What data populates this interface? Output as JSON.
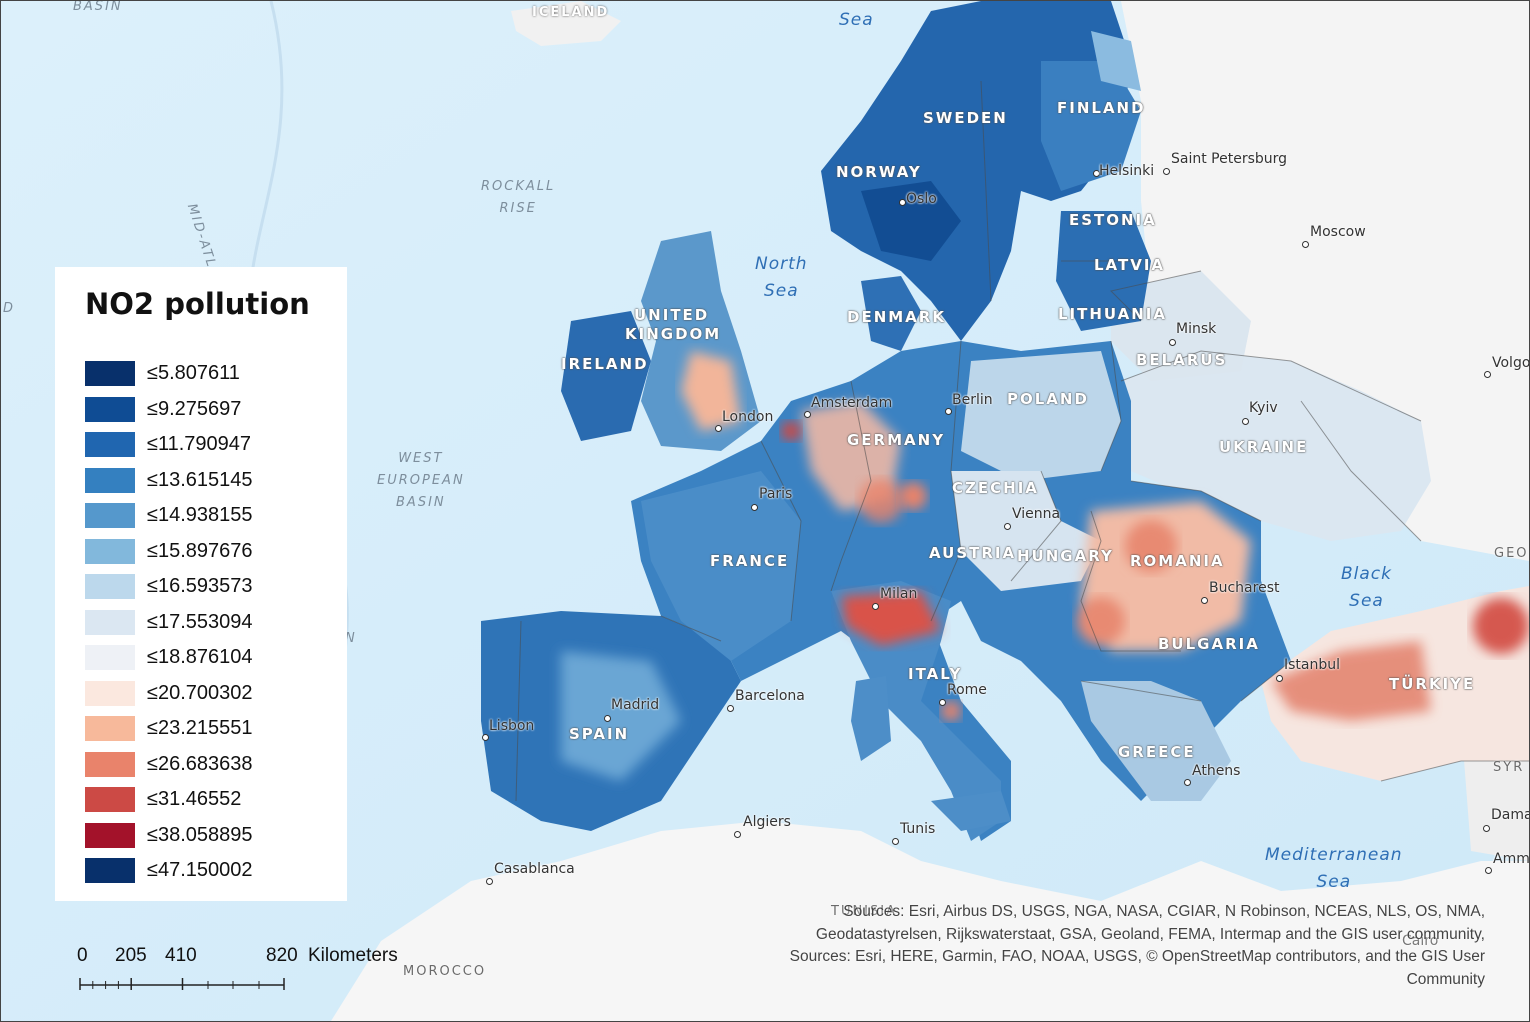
{
  "legend": {
    "title": "NO2 pollution",
    "classes": [
      {
        "label": "≤5.807611",
        "color": "#08306b"
      },
      {
        "label": "≤9.275697",
        "color": "#0f4c94"
      },
      {
        "label": "≤11.790947",
        "color": "#2066b0"
      },
      {
        "label": "≤13.615145",
        "color": "#3480c0"
      },
      {
        "label": "≤14.938155",
        "color": "#5598cc"
      },
      {
        "label": "≤15.897676",
        "color": "#82b8dc"
      },
      {
        "label": "≤16.593573",
        "color": "#bcd8ec"
      },
      {
        "label": "≤17.553094",
        "color": "#dbe7f2"
      },
      {
        "label": "≤18.876104",
        "color": "#eef1f6"
      },
      {
        "label": "≤20.700302",
        "color": "#fbe8df"
      },
      {
        "label": "≤23.215551",
        "color": "#f7b99b"
      },
      {
        "label": "≤26.683638",
        "color": "#e9836b"
      },
      {
        "label": "≤31.46552",
        "color": "#cc4a45"
      },
      {
        "label": "≤38.058895",
        "color": "#a3122a"
      },
      {
        "label": "≤47.150002",
        "color": "#08306b"
      }
    ]
  },
  "scale_bar": {
    "ticks": [
      "0",
      "205",
      "410",
      "820"
    ],
    "unit": "Kilometers"
  },
  "countries": [
    {
      "name": "ICELAND",
      "style": "light"
    },
    {
      "name": "SWEDEN",
      "style": "light"
    },
    {
      "name": "FINLAND",
      "style": "light"
    },
    {
      "name": "NORWAY",
      "style": "light"
    },
    {
      "name": "ESTONIA",
      "style": "light"
    },
    {
      "name": "LATVIA",
      "style": "light"
    },
    {
      "name": "LITHUANIA",
      "style": "light"
    },
    {
      "name": "DENMARK",
      "style": "light"
    },
    {
      "name": "UNITED",
      "style": "light"
    },
    {
      "name": "KINGDOM",
      "style": "light"
    },
    {
      "name": "IRELAND",
      "style": "light"
    },
    {
      "name": "BELARUS",
      "style": "light"
    },
    {
      "name": "POLAND",
      "style": "light"
    },
    {
      "name": "UKRAINE",
      "style": "light"
    },
    {
      "name": "GERMANY",
      "style": "light"
    },
    {
      "name": "CZECHIA",
      "style": "light"
    },
    {
      "name": "FRANCE",
      "style": "light"
    },
    {
      "name": "AUSTRIA",
      "style": "light"
    },
    {
      "name": "HUNGARY",
      "style": "light"
    },
    {
      "name": "ROMANIA",
      "style": "light"
    },
    {
      "name": "BULGARIA",
      "style": "light"
    },
    {
      "name": "ITALY",
      "style": "light"
    },
    {
      "name": "SPAIN",
      "style": "light"
    },
    {
      "name": "GREECE",
      "style": "light"
    },
    {
      "name": "TÜRKIYE",
      "style": "light"
    },
    {
      "name": "MOROCCO",
      "style": "dark"
    },
    {
      "name": "TUNISIA",
      "style": "dark"
    },
    {
      "name": "GEO",
      "style": "dark"
    },
    {
      "name": "SYR",
      "style": "dark"
    }
  ],
  "seas": [
    {
      "name": "North Sea",
      "lines": [
        "North",
        "Sea"
      ]
    },
    {
      "name": "Black Sea",
      "lines": [
        "Black",
        "Sea"
      ]
    },
    {
      "name": "Mediterranean Sea",
      "lines": [
        "Mediterranean",
        "Sea"
      ]
    },
    {
      "name": "Sea",
      "lines": [
        "Sea"
      ]
    }
  ],
  "seabed_features": [
    {
      "lines": [
        "ROCKALL",
        "RISE"
      ]
    },
    {
      "lines": [
        "WEST",
        "EUROPEAN",
        "BASIN"
      ]
    },
    {
      "lines": [
        "BASIN"
      ]
    },
    {
      "lines": [
        "MID-ATLANT"
      ]
    }
  ],
  "cities": [
    "Helsinki",
    "Saint Petersburg",
    "Oslo",
    "Moscow",
    "Minsk",
    "Amsterdam",
    "Berlin",
    "London",
    "Kyiv",
    "Paris",
    "Vienna",
    "Bucharest",
    "Milan",
    "Istanbul",
    "Barcelona",
    "Madrid",
    "Rome",
    "Lisbon",
    "Athens",
    "Algiers",
    "Tunis",
    "Casablanca",
    "Cairo",
    "Volgo",
    "Dama",
    "Amm"
  ],
  "edge_fragments": [
    "D",
    "N"
  ],
  "attribution": {
    "line1": "Sources: Esri, Airbus DS, USGS, NGA, NASA, CGIAR, N Robinson, NCEAS, NLS, OS, NMA,",
    "line2": "Geodatastyrelsen, Rijkswaterstaat, GSA, Geoland, FEMA, Intermap and the GIS user community,",
    "line3": "Sources: Esri, HERE, Garmin, FAO, NOAA, USGS, © OpenStreetMap contributors, and the GIS User",
    "line4": "Community"
  }
}
